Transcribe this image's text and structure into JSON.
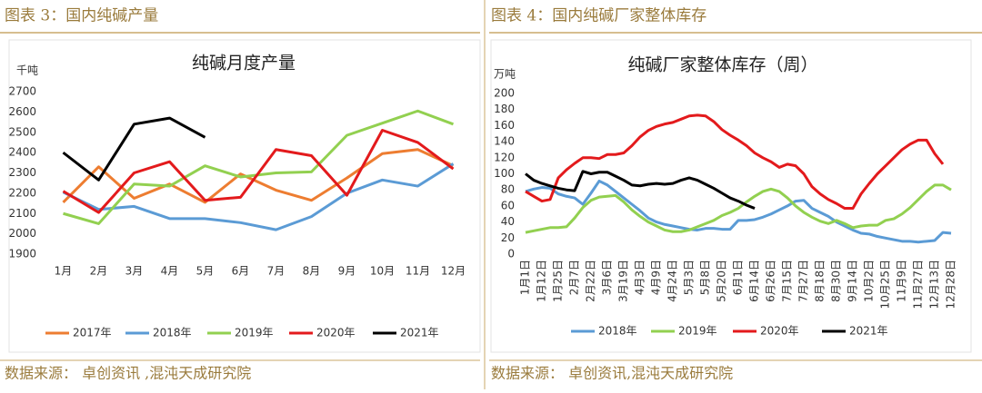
{
  "chart_data": [
    {
      "type": "line",
      "caption": "图表 3：国内纯碱产量",
      "title": "纯碱月度产量",
      "y_label": "千吨",
      "source": "数据来源：  卓创资讯 ,混沌天成研究院",
      "categories": [
        "1月",
        "2月",
        "3月",
        "4月",
        "5月",
        "6月",
        "7月",
        "8月",
        "9月",
        "10月",
        "11月",
        "12月"
      ],
      "ylim": [
        1900,
        2700
      ],
      "yticks": [
        1900,
        2000,
        2100,
        2200,
        2300,
        2400,
        2500,
        2600,
        2700
      ],
      "grid": false,
      "legend": "bottom",
      "series": [
        {
          "name": "2017年",
          "color": "#ed7d31",
          "values": [
            2155,
            2330,
            2175,
            2245,
            2155,
            2295,
            2215,
            2165,
            2275,
            2395,
            2415,
            2335
          ]
        },
        {
          "name": "2018年",
          "color": "#5b9bd5",
          "values": [
            2205,
            2120,
            2135,
            2075,
            2075,
            2055,
            2020,
            2085,
            2200,
            2265,
            2235,
            2345
          ]
        },
        {
          "name": "2019年",
          "color": "#92d050",
          "values": [
            2100,
            2050,
            2245,
            2235,
            2335,
            2280,
            2300,
            2305,
            2485,
            2545,
            2605,
            2540
          ]
        },
        {
          "name": "2020年",
          "color": "#e31a1c",
          "values": [
            2210,
            2105,
            2300,
            2355,
            2165,
            2180,
            2415,
            2385,
            2190,
            2510,
            2450,
            2320
          ]
        },
        {
          "name": "2021年",
          "color": "#000000",
          "values": [
            2400,
            2265,
            2540,
            2570,
            2475,
            null,
            null,
            null,
            null,
            null,
            null,
            null
          ]
        }
      ]
    },
    {
      "type": "line",
      "caption": "图表 4：国内纯碱厂家整体库存",
      "title": "纯碱厂家整体库存（周）",
      "y_label": "万吨",
      "source": "数据来源：  卓创资讯,混沌天成研究院",
      "categories": [
        "1月1日",
        null,
        "1月12日",
        null,
        "1月25日",
        null,
        "2月7日",
        null,
        "2月22日",
        null,
        "3月6日",
        null,
        "3月19日",
        null,
        "4月3日",
        null,
        "4月9日",
        null,
        "4月24日",
        null,
        "5月3日",
        null,
        "5月8日",
        null,
        "5月20日",
        null,
        "6月1日",
        null,
        "6月14日",
        null,
        "6月26日",
        null,
        "7月15日",
        null,
        "7月27日",
        null,
        "8月18日",
        null,
        "8月30日",
        null,
        "9月14日",
        null,
        "10月2日",
        null,
        "10月25日",
        null,
        "11月9日",
        null,
        "11月27日",
        null,
        "12月13日",
        null,
        "12月28日"
      ],
      "ylim": [
        0,
        200
      ],
      "yticks": [
        0,
        20,
        40,
        60,
        80,
        100,
        120,
        140,
        160,
        180,
        200
      ],
      "grid": false,
      "legend": "bottom",
      "series": [
        {
          "name": "2018年",
          "color": "#5b9bd5",
          "values": [
            78,
            81,
            83,
            82,
            75,
            72,
            70,
            62,
            76,
            91,
            86,
            78,
            70,
            62,
            54,
            45,
            40,
            37,
            35,
            33,
            31,
            30,
            32,
            32,
            31,
            31,
            42,
            42,
            43,
            46,
            50,
            55,
            60,
            66,
            67,
            57,
            52,
            47,
            40,
            35,
            30,
            26,
            25,
            22,
            20,
            18,
            16,
            16,
            15,
            16,
            17,
            27,
            26
          ]
        },
        {
          "name": "2019年",
          "color": "#92d050",
          "values": [
            27,
            29,
            31,
            33,
            33,
            34,
            45,
            58,
            67,
            71,
            72,
            73,
            65,
            55,
            47,
            40,
            35,
            30,
            28,
            28,
            30,
            34,
            38,
            42,
            48,
            52,
            57,
            65,
            72,
            78,
            81,
            78,
            70,
            60,
            52,
            46,
            41,
            38,
            42,
            38,
            33,
            35,
            36,
            36,
            42,
            44,
            50,
            58,
            68,
            78,
            86,
            86,
            80
          ]
        },
        {
          "name": "2020年",
          "color": "#e31a1c",
          "values": [
            78,
            72,
            66,
            68,
            95,
            105,
            113,
            120,
            120,
            119,
            124,
            124,
            126,
            135,
            146,
            154,
            159,
            162,
            164,
            168,
            172,
            173,
            172,
            165,
            155,
            148,
            142,
            135,
            126,
            120,
            115,
            108,
            112,
            110,
            100,
            84,
            75,
            68,
            63,
            57,
            57,
            75,
            88,
            100,
            110,
            120,
            130,
            137,
            142,
            142,
            125,
            112,
            null
          ]
        },
        {
          "name": "2021年",
          "color": "#000000",
          "values": [
            100,
            92,
            88,
            85,
            82,
            80,
            79,
            103,
            100,
            102,
            102,
            97,
            92,
            86,
            85,
            87,
            88,
            87,
            88,
            92,
            95,
            92,
            87,
            82,
            76,
            70,
            66,
            61,
            57,
            null,
            null,
            null,
            null,
            null,
            null,
            null,
            null,
            null,
            null,
            null,
            null,
            null,
            null,
            null,
            null,
            null,
            null,
            null,
            null,
            null,
            null,
            null,
            null
          ]
        }
      ]
    }
  ]
}
